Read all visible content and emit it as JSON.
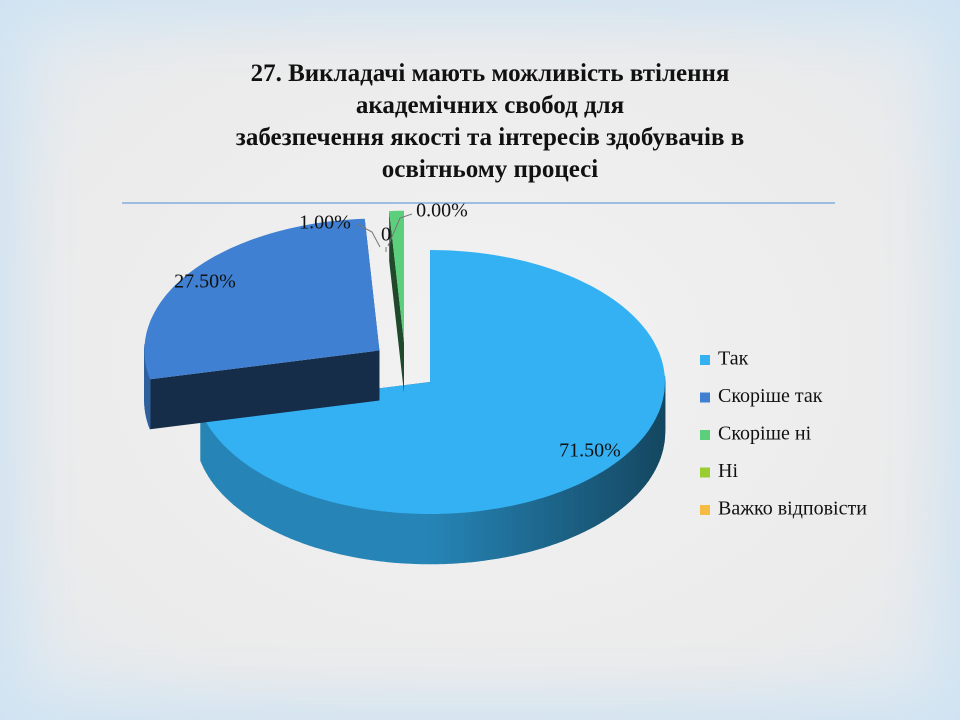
{
  "chart_data": {
    "type": "pie",
    "title": "27. Викладачі мають можливість втілення\nакадемічних свобод для\nзабезпечення якості та інтересів здобувачів в\nосвітньому процесі",
    "categories": [
      "Так",
      "Скоріше так",
      "Скоріше ні",
      "Ні",
      "Важко відповісти"
    ],
    "values": [
      71.5,
      27.5,
      1.0,
      0,
      0
    ],
    "value_labels": [
      "71.50%",
      "27.50%",
      "1.00%",
      "0",
      "0.00%"
    ],
    "colors": [
      "#33b1f2",
      "#3f80d2",
      "#5ccf7c",
      "#9acd32",
      "#f5bb42"
    ],
    "legend": "right"
  }
}
